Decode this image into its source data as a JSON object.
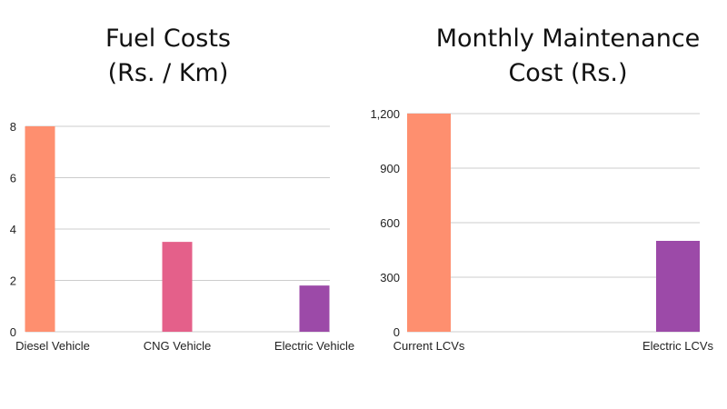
{
  "chart_data": [
    {
      "type": "bar",
      "title_lines": [
        "Fuel Costs",
        "(Rs. / Km)"
      ],
      "categories": [
        "Diesel Vehicle",
        "CNG Vehicle",
        "Electric Vehicle"
      ],
      "values": [
        8,
        3.5,
        1.8
      ],
      "colors": [
        "#FE8F6F",
        "#E4608A",
        "#9C4AA8"
      ],
      "ylim": [
        0,
        8
      ],
      "yticks": [
        0,
        2,
        4,
        6,
        8
      ],
      "ytick_labels": [
        "0",
        "2",
        "4",
        "6",
        "8"
      ],
      "grid": true,
      "xlabel": "",
      "ylabel": ""
    },
    {
      "type": "bar",
      "title_lines": [
        "Monthly Maintenance",
        "Cost (Rs.)"
      ],
      "categories": [
        "Current LCVs",
        "Electric LCVs"
      ],
      "values": [
        1200,
        500
      ],
      "colors": [
        "#FE8F6F",
        "#9C4AA8"
      ],
      "ylim": [
        0,
        1200
      ],
      "yticks": [
        0,
        300,
        600,
        900,
        1200
      ],
      "ytick_labels": [
        "0",
        "300",
        "600",
        "900",
        "1,200"
      ],
      "grid": true,
      "xlabel": "",
      "ylabel": ""
    }
  ]
}
